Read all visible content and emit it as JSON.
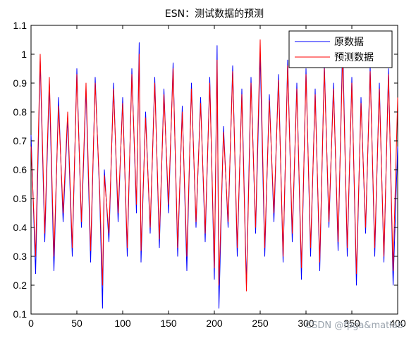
{
  "chart_data": {
    "type": "line",
    "title": "ESN：测试数据的预测",
    "xlabel": "",
    "ylabel": "",
    "xlim": [
      0,
      400
    ],
    "ylim": [
      0.1,
      1.1
    ],
    "x_ticks": [
      0,
      50,
      100,
      150,
      200,
      250,
      300,
      350,
      400
    ],
    "y_ticks": [
      0.1,
      0.2,
      0.3,
      0.4,
      0.5,
      0.6,
      0.7,
      0.8,
      0.9,
      1,
      1.1
    ],
    "x_tick_labels": [
      "0",
      "50",
      "100",
      "150",
      "200",
      "250",
      "300",
      "350",
      "400"
    ],
    "y_tick_labels": [
      "0.1",
      "0.2",
      "0.3",
      "0.4",
      "0.5",
      "0.6",
      "0.7",
      "0.8",
      "0.9",
      "1",
      "1.1"
    ],
    "grid": false,
    "legend_position": "top-right",
    "series": [
      {
        "name": "原数据",
        "color": "#0000ff",
        "x": [
          0,
          5,
          10,
          15,
          20,
          25,
          30,
          35,
          40,
          45,
          50,
          55,
          60,
          65,
          70,
          75,
          78,
          80,
          85,
          90,
          95,
          100,
          105,
          110,
          115,
          118,
          120,
          125,
          130,
          135,
          140,
          145,
          150,
          155,
          160,
          165,
          170,
          175,
          180,
          185,
          190,
          195,
          200,
          203,
          205,
          210,
          215,
          220,
          225,
          230,
          235,
          240,
          245,
          250,
          255,
          260,
          265,
          270,
          275,
          280,
          285,
          290,
          295,
          300,
          305,
          310,
          315,
          320,
          325,
          330,
          335,
          340,
          345,
          350,
          355,
          360,
          365,
          370,
          375,
          380,
          385,
          390,
          395,
          400
        ],
        "values": [
          0.72,
          0.24,
          0.98,
          0.35,
          0.9,
          0.25,
          0.85,
          0.42,
          0.78,
          0.3,
          0.95,
          0.4,
          0.88,
          0.28,
          0.92,
          0.5,
          0.12,
          0.6,
          0.35,
          0.9,
          0.42,
          0.85,
          0.3,
          0.95,
          0.45,
          1.04,
          0.28,
          0.8,
          0.38,
          0.92,
          0.33,
          0.88,
          0.45,
          0.97,
          0.3,
          0.82,
          0.25,
          0.9,
          0.4,
          0.85,
          0.35,
          0.92,
          0.22,
          1.03,
          0.12,
          0.75,
          0.4,
          0.96,
          0.3,
          0.88,
          0.2,
          0.92,
          0.38,
          1.0,
          0.3,
          0.86,
          0.42,
          0.93,
          0.28,
          0.98,
          0.35,
          0.9,
          0.22,
          0.95,
          0.3,
          0.88,
          0.25,
          0.97,
          0.4,
          0.9,
          0.32,
          1.05,
          0.3,
          0.92,
          0.2,
          0.85,
          0.38,
          0.96,
          0.3,
          0.9,
          0.28,
          0.95,
          0.2,
          0.68
        ]
      },
      {
        "name": "预测数据",
        "color": "#ff0000",
        "x": [
          0,
          5,
          10,
          15,
          20,
          25,
          30,
          35,
          40,
          45,
          50,
          55,
          60,
          65,
          70,
          75,
          78,
          80,
          85,
          90,
          95,
          100,
          105,
          110,
          115,
          118,
          120,
          125,
          130,
          135,
          140,
          145,
          150,
          155,
          160,
          165,
          170,
          175,
          180,
          185,
          190,
          195,
          200,
          203,
          205,
          210,
          215,
          220,
          225,
          230,
          235,
          240,
          245,
          250,
          255,
          260,
          265,
          270,
          275,
          280,
          285,
          290,
          295,
          300,
          305,
          310,
          315,
          320,
          325,
          330,
          335,
          340,
          345,
          350,
          355,
          360,
          365,
          370,
          375,
          380,
          385,
          390,
          395,
          400
        ],
        "values": [
          0.68,
          0.3,
          1.0,
          0.38,
          0.92,
          0.3,
          0.82,
          0.45,
          0.8,
          0.33,
          0.93,
          0.42,
          0.9,
          0.32,
          0.9,
          0.52,
          0.2,
          0.58,
          0.38,
          0.88,
          0.45,
          0.83,
          0.33,
          0.93,
          0.48,
          1.0,
          0.32,
          0.78,
          0.4,
          0.9,
          0.36,
          0.86,
          0.48,
          0.95,
          0.33,
          0.8,
          0.3,
          0.88,
          0.42,
          0.83,
          0.38,
          0.9,
          0.26,
          0.98,
          0.2,
          0.73,
          0.42,
          0.94,
          0.33,
          0.86,
          0.18,
          0.9,
          0.4,
          1.05,
          0.33,
          0.84,
          0.45,
          0.91,
          0.3,
          0.96,
          0.38,
          0.88,
          0.26,
          0.93,
          0.33,
          0.86,
          0.28,
          0.95,
          0.42,
          0.88,
          0.35,
          1.0,
          0.33,
          0.9,
          0.24,
          0.83,
          0.4,
          0.94,
          0.33,
          0.88,
          0.3,
          0.93,
          0.25,
          0.85
        ]
      }
    ]
  },
  "watermark": "CSDN @fpga&matlab"
}
